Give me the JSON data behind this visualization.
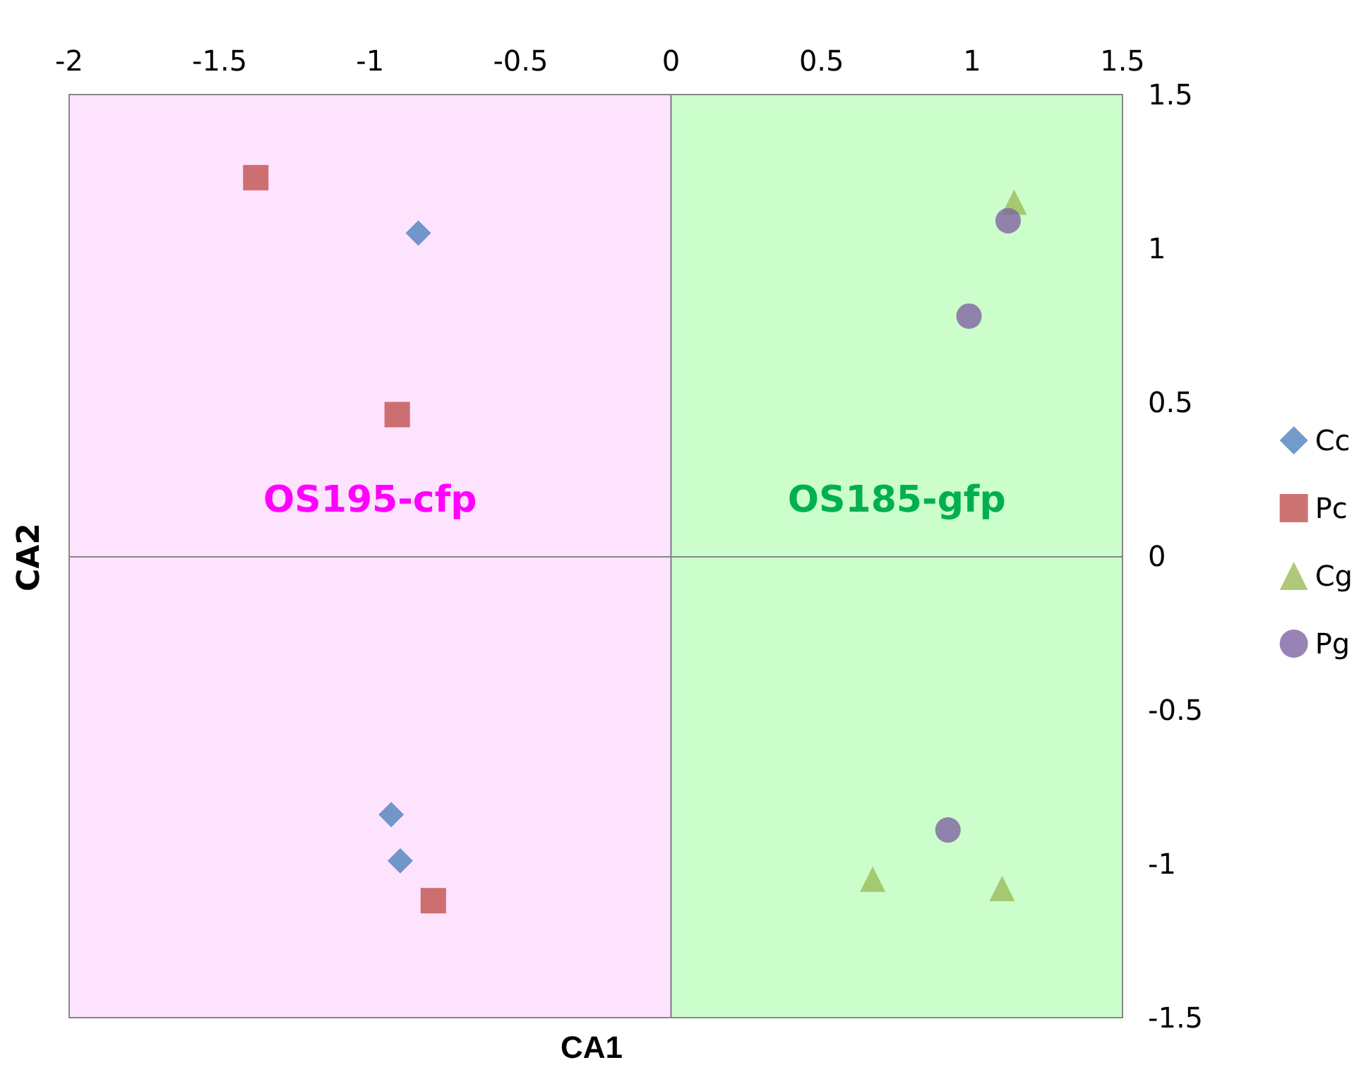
{
  "chart_data": {
    "type": "scatter",
    "xlabel": "CA1",
    "ylabel": "CA2",
    "xlim": [
      -2,
      1.5
    ],
    "xticks": [
      -2,
      -1.5,
      -1,
      -0.5,
      0,
      0.5,
      1,
      1.5
    ],
    "ylim": [
      -1.5,
      1.5
    ],
    "yticks": [
      -1.5,
      -1,
      -0.5,
      0,
      0.5,
      1,
      1.5
    ],
    "grid": false,
    "legend": "right",
    "series": [
      {
        "name": "Cc",
        "color": "#4f81bd",
        "marker": "diamond",
        "x": [
          -0.84,
          -0.93,
          -0.9
        ],
        "values": [
          1.05,
          -0.84,
          -0.99
        ]
      },
      {
        "name": "Pc",
        "color": "#c0504d",
        "marker": "square",
        "x": [
          -1.38,
          -0.91,
          -0.79
        ],
        "values": [
          1.23,
          0.46,
          -1.12
        ]
      },
      {
        "name": "Cg",
        "color": "#9bbb59",
        "marker": "triangle",
        "x": [
          1.14,
          0.67,
          1.1
        ],
        "values": [
          1.15,
          -1.05,
          -1.08
        ]
      },
      {
        "name": "Pg",
        "color": "#8064a2",
        "marker": "circle",
        "x": [
          1.12,
          0.99,
          0.92
        ],
        "values": [
          1.09,
          0.78,
          -0.89
        ]
      }
    ],
    "bands": [
      {
        "axis": "x",
        "from": -2,
        "to": 0,
        "label": "OS195-cfp",
        "color": "#fde3fd"
      },
      {
        "axis": "x",
        "from": 0,
        "to": 1.5,
        "label": "OS185-gfp",
        "color": "#ccfecc"
      }
    ],
    "ref_lines": [
      {
        "axis": "y",
        "value": 0,
        "color": "#868686"
      }
    ]
  }
}
